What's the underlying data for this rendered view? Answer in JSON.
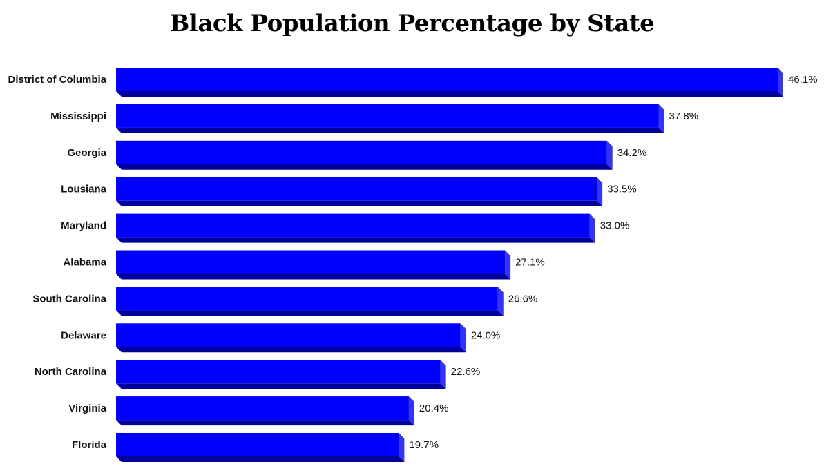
{
  "chart_data": {
    "type": "bar",
    "orientation": "horizontal",
    "title": "Black Population Percentage by State",
    "xlabel": "",
    "ylabel": "",
    "categories": [
      "District of Columbia",
      "Mississippi",
      "Georgia",
      "Lousiana",
      "Maryland",
      "Alabama",
      "South Carolina",
      "Delaware",
      "North Carolina",
      "Virginia",
      "Florida"
    ],
    "values": [
      46.1,
      37.8,
      34.2,
      33.5,
      33.0,
      27.1,
      26.6,
      24.0,
      22.6,
      20.4,
      19.7
    ],
    "value_labels": [
      "46.1%",
      "37.8%",
      "34.2%",
      "33.5%",
      "33.0%",
      "27.1%",
      "26.6%",
      "24.0%",
      "22.6%",
      "20.4%",
      "19.7%"
    ],
    "xlim": [
      0,
      46.1
    ],
    "grid": false,
    "legend": "none",
    "style": "3d-bar",
    "colors": {
      "bar_front": "#0000ff",
      "bar_side": "#3333ff",
      "bar_bottom": "#00009a"
    }
  }
}
